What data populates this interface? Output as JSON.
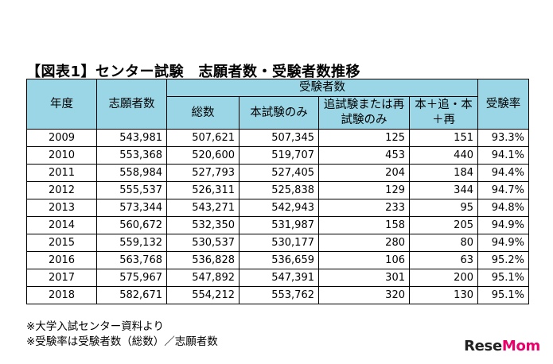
{
  "title": "【図表1】センター試験　志願者数・受験者数推移",
  "headers": {
    "year": "年度",
    "applicants": "志願者数",
    "examinees_group": "受験者数",
    "total": "総数",
    "main_exam_only": "本試験のみ",
    "retest_only": "追試験または再試験のみ",
    "main_plus_re": "本＋追・本＋再",
    "exam_rate": "受験率"
  },
  "rows": [
    {
      "year": "2009",
      "applicants": "543,981",
      "total": "507,621",
      "main": "507,345",
      "retest": "125",
      "both": "151",
      "rate": "93.3%"
    },
    {
      "year": "2010",
      "applicants": "553,368",
      "total": "520,600",
      "main": "519,707",
      "retest": "453",
      "both": "440",
      "rate": "94.1%"
    },
    {
      "year": "2011",
      "applicants": "558,984",
      "total": "527,793",
      "main": "527,405",
      "retest": "204",
      "both": "184",
      "rate": "94.4%"
    },
    {
      "year": "2012",
      "applicants": "555,537",
      "total": "526,311",
      "main": "525,838",
      "retest": "129",
      "both": "344",
      "rate": "94.7%"
    },
    {
      "year": "2013",
      "applicants": "573,344",
      "total": "543,271",
      "main": "542,943",
      "retest": "233",
      "both": "95",
      "rate": "94.8%"
    },
    {
      "year": "2014",
      "applicants": "560,672",
      "total": "532,350",
      "main": "531,987",
      "retest": "158",
      "both": "205",
      "rate": "94.9%"
    },
    {
      "year": "2015",
      "applicants": "559,132",
      "total": "530,537",
      "main": "530,177",
      "retest": "280",
      "both": "80",
      "rate": "94.9%"
    },
    {
      "year": "2016",
      "applicants": "563,768",
      "total": "536,828",
      "main": "536,659",
      "retest": "106",
      "both": "63",
      "rate": "95.2%"
    },
    {
      "year": "2017",
      "applicants": "575,967",
      "total": "547,892",
      "main": "547,391",
      "retest": "301",
      "both": "200",
      "rate": "95.1%"
    },
    {
      "year": "2018",
      "applicants": "582,671",
      "total": "554,212",
      "main": "553,762",
      "retest": "320",
      "both": "130",
      "rate": "95.1%"
    }
  ],
  "notes": [
    "※大学入試センター資料より",
    "※受験率は受験者数（総数）／志願者数"
  ],
  "logo": {
    "part1": "Rese",
    "part2": "Mom"
  },
  "colors": {
    "header_bg": "#9ad6e6",
    "logo_accent": "#e9006a"
  }
}
